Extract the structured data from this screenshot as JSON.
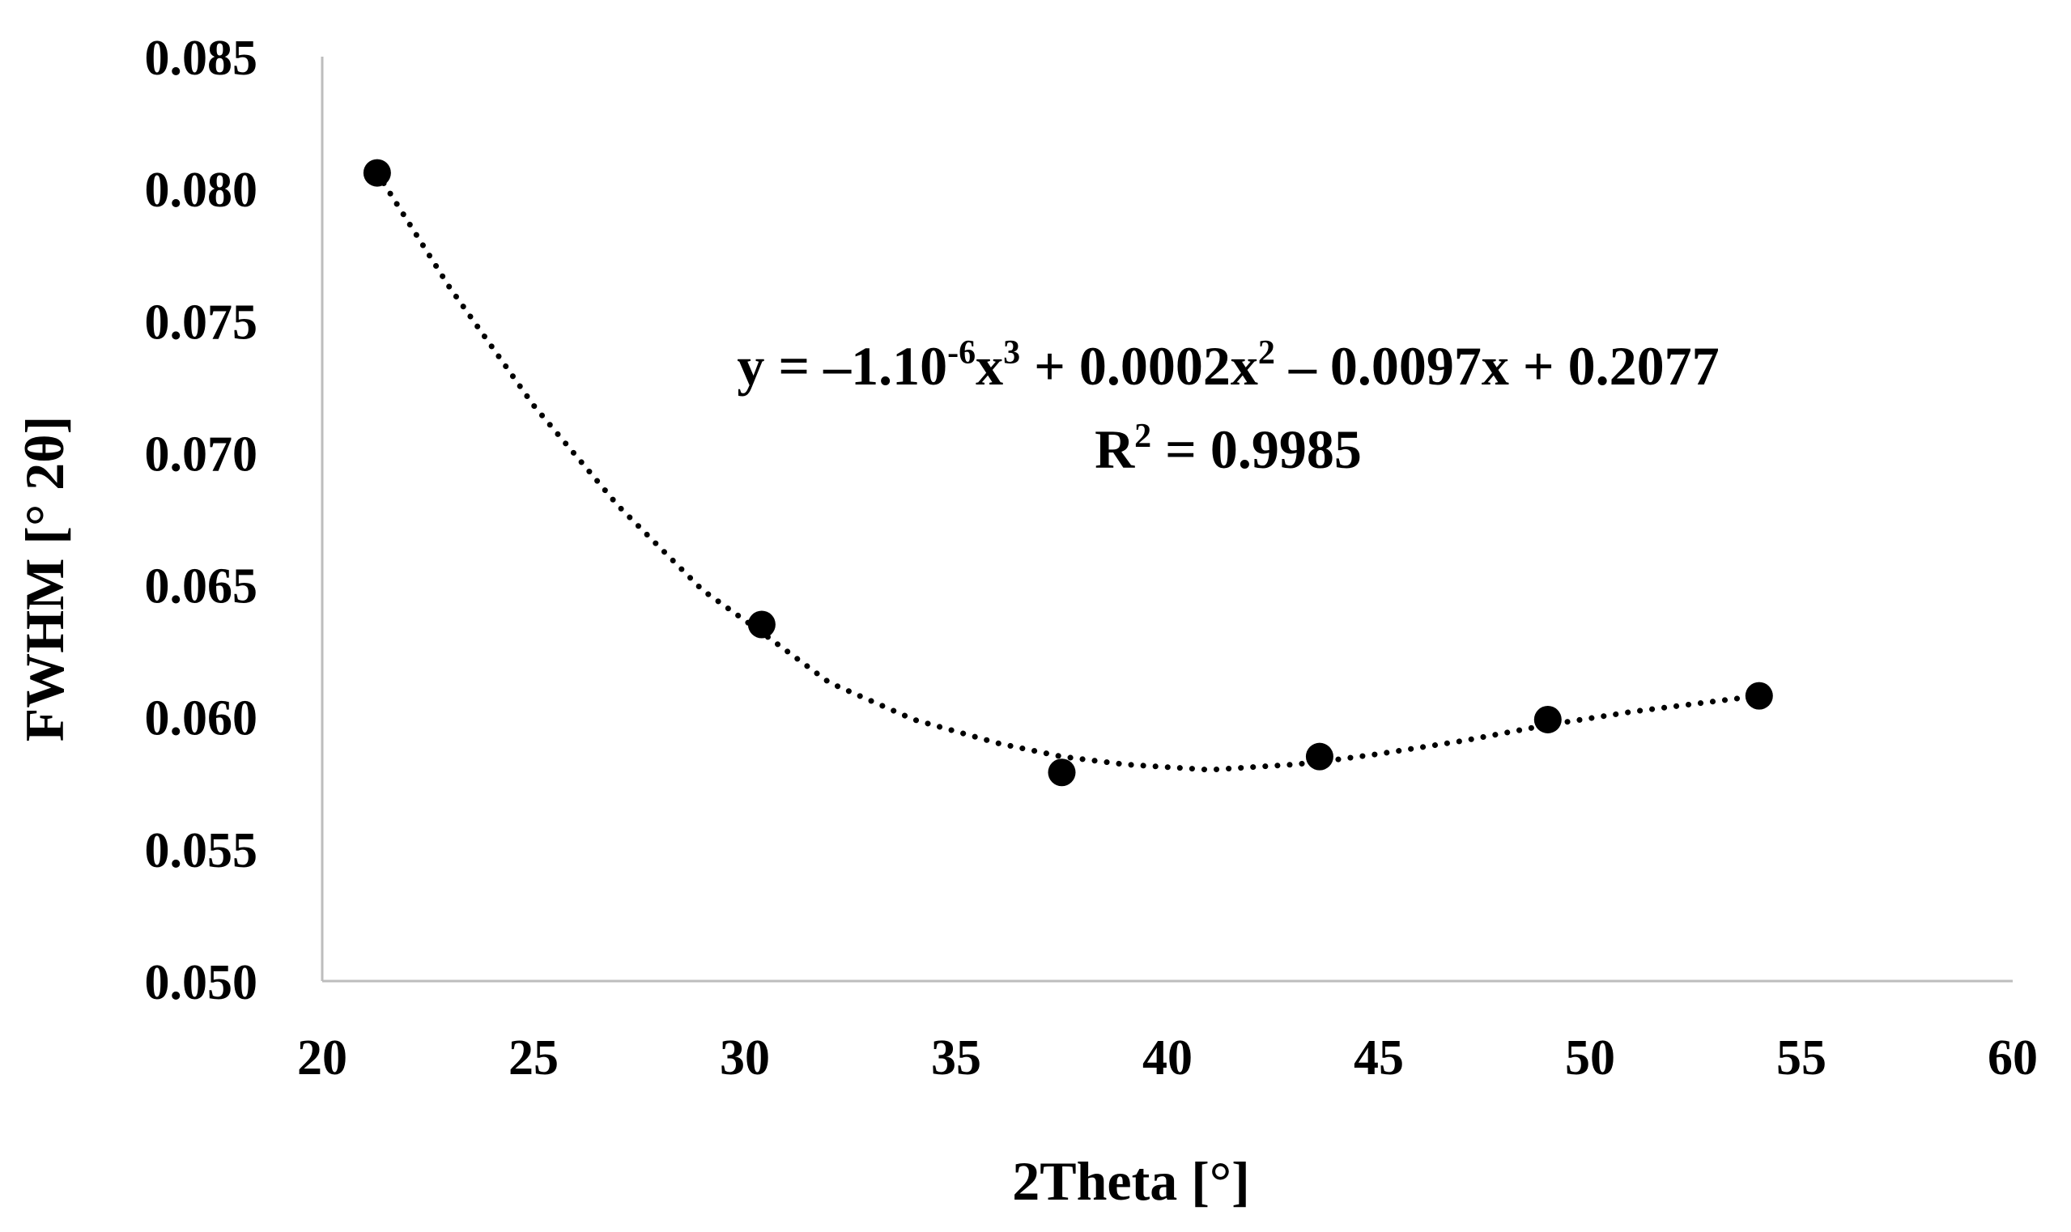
{
  "chart_data": {
    "type": "scatter",
    "title": "",
    "xlabel": "2Theta [°]",
    "ylabel": "FWHM [° 2θ]",
    "xlim": [
      20,
      60
    ],
    "ylim": [
      0.05,
      0.085
    ],
    "x_ticks": [
      20,
      25,
      30,
      35,
      40,
      45,
      50,
      55,
      60
    ],
    "x_tick_labels": [
      "20",
      "25",
      "30",
      "35",
      "40",
      "45",
      "50",
      "55",
      "60"
    ],
    "y_ticks": [
      0.05,
      0.055,
      0.06,
      0.065,
      0.07,
      0.075,
      0.08,
      0.085
    ],
    "y_tick_labels": [
      "0.050",
      "0.055",
      "0.060",
      "0.065",
      "0.070",
      "0.075",
      "0.080",
      "0.085"
    ],
    "grid": false,
    "series": [
      {
        "name": "FWHM",
        "marker": "circle",
        "color": "#000000",
        "x": [
          21.3,
          30.4,
          37.5,
          43.6,
          49.0,
          54.0
        ],
        "y": [
          0.0806,
          0.0635,
          0.0579,
          0.0585,
          0.0599,
          0.0608
        ]
      }
    ],
    "trendline": {
      "type": "polynomial",
      "order": 3,
      "style": "dotted",
      "color": "#000000",
      "x_range": [
        21.3,
        54.0
      ],
      "fit_points": {
        "x": [
          21.3,
          23,
          25,
          27,
          29,
          30.4,
          32,
          34,
          36,
          37.5,
          39,
          41,
          43,
          43.6,
          45,
          47,
          49,
          51,
          53,
          54.0
        ],
        "y": [
          0.0806,
          0.0763,
          0.0718,
          0.068,
          0.0648,
          0.0632,
          0.0613,
          0.0599,
          0.059,
          0.0585,
          0.0582,
          0.058,
          0.0582,
          0.0583,
          0.0586,
          0.0591,
          0.0597,
          0.0602,
          0.0606,
          0.0608
        ]
      }
    },
    "annotations": {
      "equation": {
        "lead": "y = –1.10",
        "exp1": "-6",
        "mid1": "x",
        "exp2": "3",
        "mid2": " + 0.0002x",
        "exp3": "2",
        "tail": " – 0.0097x + 0.2077"
      },
      "r_squared": {
        "lead": "R",
        "exp": "2",
        "tail": " = 0.9985"
      }
    }
  }
}
